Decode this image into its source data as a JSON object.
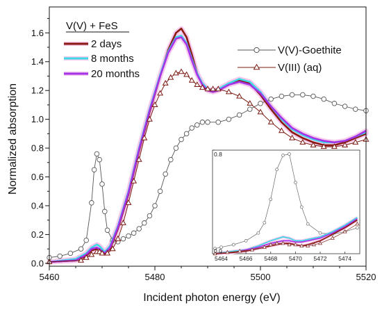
{
  "chart_data": [
    {
      "type": "line",
      "xlabel": "Incident photon energy (eV)",
      "ylabel": "Normalized absorption",
      "xlim": [
        5460,
        5520
      ],
      "ylim": [
        -0.02,
        1.78
      ],
      "xticks": [
        "5460",
        "5480",
        "5500",
        "5520"
      ],
      "yticks": [
        "0.0",
        "0.2",
        "0.4",
        "0.6",
        "0.8",
        "1.0",
        "1.2",
        "1.4",
        "1.6"
      ],
      "legend_title": "V(V) + FeS",
      "series": [
        {
          "name": "2 days",
          "color": "#8b1a10",
          "marker": "none",
          "x": [
            5460,
            5465,
            5467,
            5468,
            5469,
            5469.5,
            5470.5,
            5471.5,
            5473,
            5475,
            5477,
            5479,
            5481,
            5482.5,
            5484,
            5485,
            5486,
            5487,
            5488,
            5489,
            5490,
            5491,
            5492,
            5494,
            5496,
            5498,
            5500,
            5502,
            5504,
            5506,
            5508,
            5510,
            5512,
            5514,
            5516,
            5518,
            5520
          ],
          "y": [
            0.01,
            0.02,
            0.05,
            0.09,
            0.1,
            0.1,
            0.07,
            0.1,
            0.24,
            0.48,
            0.78,
            1.05,
            1.3,
            1.48,
            1.6,
            1.63,
            1.57,
            1.45,
            1.32,
            1.24,
            1.2,
            1.19,
            1.2,
            1.24,
            1.27,
            1.25,
            1.17,
            1.07,
            0.98,
            0.91,
            0.87,
            0.84,
            0.82,
            0.82,
            0.84,
            0.87,
            0.9
          ]
        },
        {
          "name": "8 months",
          "color": "#3fd9e6",
          "marker": "none",
          "x": [
            5460,
            5465,
            5467,
            5468,
            5469,
            5469.5,
            5470.5,
            5471.5,
            5473,
            5475,
            5477,
            5479,
            5481,
            5482.5,
            5484,
            5485,
            5486,
            5487,
            5488,
            5489,
            5490,
            5491,
            5492,
            5494,
            5496,
            5498,
            5500,
            5502,
            5504,
            5506,
            5508,
            5510,
            5512,
            5514,
            5516,
            5518,
            5520
          ],
          "y": [
            0.01,
            0.03,
            0.07,
            0.11,
            0.13,
            0.12,
            0.08,
            0.12,
            0.26,
            0.5,
            0.8,
            1.07,
            1.31,
            1.47,
            1.57,
            1.58,
            1.53,
            1.42,
            1.32,
            1.25,
            1.21,
            1.2,
            1.21,
            1.25,
            1.28,
            1.26,
            1.19,
            1.09,
            1.0,
            0.93,
            0.89,
            0.86,
            0.84,
            0.84,
            0.85,
            0.88,
            0.91
          ]
        },
        {
          "name": "20 months",
          "color": "#a433e8",
          "marker": "none",
          "x": [
            5460,
            5465,
            5467,
            5468,
            5469,
            5469.5,
            5470.5,
            5471.5,
            5473,
            5475,
            5477,
            5479,
            5481,
            5482.5,
            5484,
            5485,
            5486,
            5487,
            5488,
            5489,
            5490,
            5491,
            5492,
            5494,
            5496,
            5498,
            5500,
            5502,
            5504,
            5506,
            5508,
            5510,
            5512,
            5514,
            5516,
            5518,
            5520
          ],
          "y": [
            0.01,
            0.02,
            0.06,
            0.1,
            0.11,
            0.1,
            0.07,
            0.11,
            0.25,
            0.49,
            0.79,
            1.06,
            1.3,
            1.46,
            1.56,
            1.57,
            1.52,
            1.41,
            1.31,
            1.24,
            1.2,
            1.19,
            1.2,
            1.24,
            1.26,
            1.24,
            1.18,
            1.09,
            1.01,
            0.94,
            0.9,
            0.87,
            0.85,
            0.84,
            0.85,
            0.88,
            0.92
          ]
        },
        {
          "name": "V(V)-Goethite",
          "color": "#555555",
          "marker": "circle",
          "x": [
            5460,
            5462,
            5464,
            5466,
            5467,
            5468,
            5468.5,
            5469,
            5469.5,
            5470,
            5470.5,
            5471,
            5472,
            5473,
            5474,
            5475,
            5476,
            5477,
            5478,
            5479,
            5480,
            5481,
            5482,
            5483,
            5484,
            5485,
            5486,
            5487,
            5488,
            5489,
            5490,
            5492,
            5494,
            5496,
            5498,
            5500,
            5502,
            5504,
            5506,
            5508,
            5510,
            5512,
            5514,
            5516,
            5518,
            5520
          ],
          "y": [
            0.04,
            0.05,
            0.07,
            0.1,
            0.16,
            0.42,
            0.65,
            0.76,
            0.72,
            0.55,
            0.36,
            0.23,
            0.16,
            0.15,
            0.17,
            0.19,
            0.21,
            0.24,
            0.28,
            0.33,
            0.4,
            0.5,
            0.62,
            0.72,
            0.8,
            0.86,
            0.9,
            0.94,
            0.96,
            0.98,
            0.98,
            0.98,
            1.0,
            1.03,
            1.07,
            1.11,
            1.14,
            1.16,
            1.17,
            1.17,
            1.16,
            1.14,
            1.11,
            1.09,
            1.07,
            1.06
          ]
        },
        {
          "name": "V(III) (aq)",
          "color": "#7a1810",
          "marker": "triangle",
          "x": [
            5460,
            5466,
            5467,
            5468,
            5469,
            5469.5,
            5470,
            5471,
            5472,
            5473,
            5474,
            5475,
            5476,
            5477,
            5478,
            5479,
            5480,
            5481,
            5482,
            5483,
            5484,
            5485,
            5486,
            5487,
            5488,
            5489,
            5490,
            5491,
            5492,
            5494,
            5496,
            5498,
            5500,
            5502,
            5504,
            5506,
            5508,
            5510,
            5512,
            5514,
            5516,
            5518,
            5520
          ],
          "y": [
            0.01,
            0.02,
            0.04,
            0.06,
            0.08,
            0.08,
            0.07,
            0.07,
            0.1,
            0.17,
            0.28,
            0.42,
            0.57,
            0.72,
            0.87,
            1.0,
            1.1,
            1.18,
            1.25,
            1.29,
            1.32,
            1.33,
            1.31,
            1.27,
            1.24,
            1.22,
            1.21,
            1.21,
            1.21,
            1.19,
            1.16,
            1.11,
            1.05,
            0.98,
            0.92,
            0.87,
            0.84,
            0.82,
            0.81,
            0.81,
            0.82,
            0.84,
            0.86
          ]
        }
      ]
    },
    {
      "type": "line",
      "xlim": [
        5463.3,
        5475.2
      ],
      "ylim": [
        0,
        0.8
      ],
      "xticks": [
        "5464",
        "5466",
        "5468",
        "5470",
        "5472",
        "5474"
      ],
      "yticks": [
        "0.0",
        "0.8"
      ],
      "series": [
        {
          "name": "V(V)-Goethite",
          "x": [
            5463.5,
            5464,
            5465,
            5466,
            5467,
            5467.5,
            5468,
            5468.5,
            5469,
            5469.5,
            5470,
            5470.5,
            5471,
            5472,
            5473,
            5474,
            5475
          ],
          "y": [
            0.04,
            0.05,
            0.07,
            0.1,
            0.16,
            0.24,
            0.42,
            0.65,
            0.76,
            0.77,
            0.55,
            0.36,
            0.23,
            0.16,
            0.15,
            0.17,
            0.2
          ]
        },
        {
          "name": "V(III) (aq)",
          "x": [
            5463.5,
            5464.5,
            5465.5,
            5466.5,
            5467.5,
            5468,
            5468.5,
            5469,
            5469.5,
            5470,
            5470.5,
            5471,
            5471.5,
            5472,
            5473,
            5474,
            5475
          ],
          "y": [
            0.0,
            0.01,
            0.02,
            0.03,
            0.05,
            0.07,
            0.08,
            0.08,
            0.07,
            0.07,
            0.06,
            0.06,
            0.07,
            0.08,
            0.12,
            0.17,
            0.23
          ]
        },
        {
          "name": "2 days",
          "x": [
            5463.5,
            5465,
            5466,
            5467,
            5468,
            5469,
            5469.5,
            5470,
            5470.5,
            5471,
            5472,
            5473,
            5474,
            5475
          ],
          "y": [
            0.0,
            0.01,
            0.02,
            0.04,
            0.06,
            0.08,
            0.08,
            0.07,
            0.06,
            0.07,
            0.1,
            0.15,
            0.2,
            0.26
          ]
        },
        {
          "name": "8 months",
          "x": [
            5463.5,
            5465,
            5466,
            5467,
            5468,
            5469,
            5469.5,
            5470,
            5470.5,
            5471,
            5472,
            5473,
            5474,
            5475
          ],
          "y": [
            0.0,
            0.02,
            0.03,
            0.06,
            0.1,
            0.13,
            0.12,
            0.1,
            0.1,
            0.11,
            0.13,
            0.17,
            0.22,
            0.28
          ]
        },
        {
          "name": "20 months",
          "x": [
            5463.5,
            5465,
            5466,
            5467,
            5468,
            5469,
            5469.5,
            5470,
            5470.5,
            5471,
            5472,
            5473,
            5474,
            5475
          ],
          "y": [
            0.0,
            0.01,
            0.03,
            0.05,
            0.08,
            0.1,
            0.1,
            0.09,
            0.09,
            0.1,
            0.12,
            0.16,
            0.21,
            0.27
          ]
        }
      ]
    }
  ]
}
